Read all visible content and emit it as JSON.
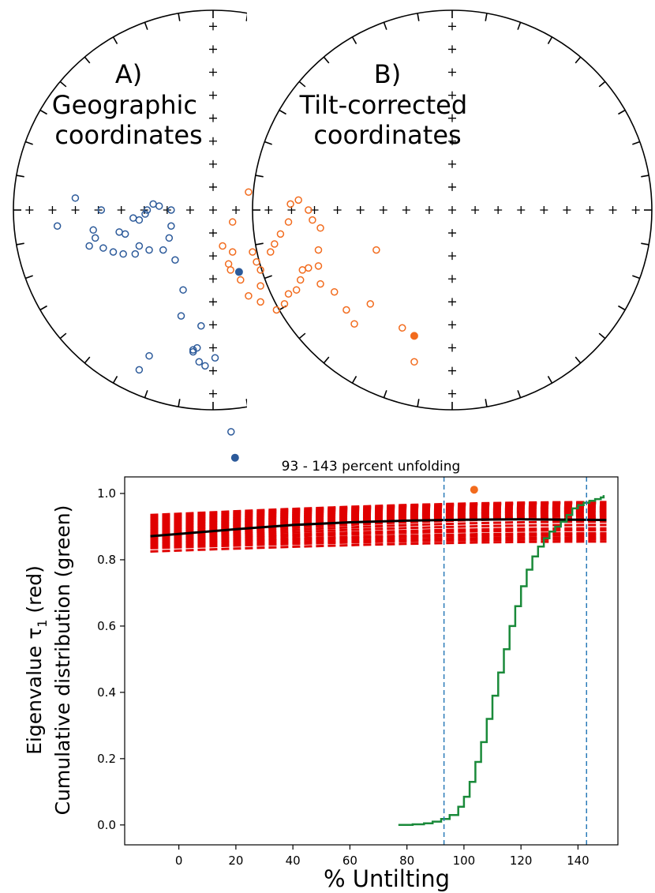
{
  "chart_data": [
    {
      "type": "scatter",
      "panel": "equal-area stereonet",
      "title_letter": "A)",
      "title": "Geographic\ncoordinates",
      "open_marker_color": "#2c5a9a",
      "filled_marker_color": "#2c5a9a",
      "open_points": [
        [
          -0.69,
          0.06
        ],
        [
          -0.78,
          -0.08
        ],
        [
          -0.56,
          0.0
        ],
        [
          -0.6,
          -0.1
        ],
        [
          -0.59,
          -0.14
        ],
        [
          -0.62,
          -0.18
        ],
        [
          -0.47,
          -0.11
        ],
        [
          -0.44,
          -0.12
        ],
        [
          -0.4,
          -0.04
        ],
        [
          -0.37,
          -0.05
        ],
        [
          -0.34,
          -0.02
        ],
        [
          -0.33,
          0.0
        ],
        [
          -0.3,
          0.03
        ],
        [
          -0.27,
          0.02
        ],
        [
          -0.21,
          0.0
        ],
        [
          -0.21,
          -0.08
        ],
        [
          -0.22,
          -0.14
        ],
        [
          -0.25,
          -0.2
        ],
        [
          -0.32,
          -0.2
        ],
        [
          -0.37,
          -0.18
        ],
        [
          -0.39,
          -0.22
        ],
        [
          -0.45,
          -0.22
        ],
        [
          -0.5,
          -0.21
        ],
        [
          -0.55,
          -0.19
        ],
        [
          -0.19,
          -0.25
        ],
        [
          -0.15,
          -0.4
        ],
        [
          -0.16,
          -0.53
        ],
        [
          -0.08,
          -0.69
        ],
        [
          -0.1,
          -0.7
        ],
        [
          -0.1,
          -0.71
        ],
        [
          -0.07,
          -0.76
        ],
        [
          -0.04,
          -0.78
        ],
        [
          0.01,
          -0.74
        ],
        [
          -0.32,
          -0.73
        ],
        [
          -0.37,
          -0.8
        ],
        [
          0.09,
          -1.11
        ],
        [
          -0.06,
          -0.58
        ]
      ],
      "filled_points": [
        [
          0.13,
          -0.31
        ],
        [
          0.11,
          -1.24
        ]
      ]
    },
    {
      "type": "scatter",
      "panel": "equal-area stereonet",
      "title_letter": "B)",
      "title": "Tilt-corrected\ncoordinates",
      "open_marker_color": "#f26b1d",
      "filled_marker_color": "#f26b1d",
      "open_points": [
        [
          -1.02,
          0.09
        ],
        [
          -1.1,
          -0.06
        ],
        [
          -1.15,
          -0.18
        ],
        [
          -1.1,
          -0.21
        ],
        [
          -1.12,
          -0.27
        ],
        [
          -1.11,
          -0.3
        ],
        [
          -1.0,
          -0.21
        ],
        [
          -0.98,
          -0.26
        ],
        [
          -0.96,
          -0.3
        ],
        [
          -0.96,
          -0.38
        ],
        [
          -0.91,
          -0.21
        ],
        [
          -0.89,
          -0.17
        ],
        [
          -0.86,
          -0.12
        ],
        [
          -0.82,
          -0.06
        ],
        [
          -0.81,
          0.03
        ],
        [
          -0.77,
          0.05
        ],
        [
          -0.72,
          0.0
        ],
        [
          -0.7,
          -0.05
        ],
        [
          -0.66,
          -0.09
        ],
        [
          -0.67,
          -0.2
        ],
        [
          -0.67,
          -0.28
        ],
        [
          -0.72,
          -0.29
        ],
        [
          -0.75,
          -0.3
        ],
        [
          -0.76,
          -0.35
        ],
        [
          -0.78,
          -0.4
        ],
        [
          -0.82,
          -0.42
        ],
        [
          -0.84,
          -0.47
        ],
        [
          -0.88,
          -0.5
        ],
        [
          -0.96,
          -0.46
        ],
        [
          -1.02,
          -0.43
        ],
        [
          -1.06,
          -0.35
        ],
        [
          -0.66,
          -0.37
        ],
        [
          -0.59,
          -0.41
        ],
        [
          -0.53,
          -0.5
        ],
        [
          -0.49,
          -0.57
        ],
        [
          -0.41,
          -0.47
        ],
        [
          -0.38,
          -0.2
        ],
        [
          -0.25,
          -0.59
        ],
        [
          -0.19,
          -0.76
        ]
      ],
      "filled_points": [
        [
          -0.19,
          -0.63
        ],
        [
          0.11,
          -1.4
        ]
      ]
    },
    {
      "type": "line",
      "title": "93 - 143 percent unfolding",
      "xlabel": "% Untilting",
      "ylabel_line1": "Eigenvalue τ",
      "ylabel_sub": "1",
      "ylabel_suffix": " (red)",
      "ylabel_line2": "Cumulative distribution (green)",
      "xlim": [
        -19,
        154
      ],
      "ylim": [
        -0.06,
        1.05
      ],
      "xticks": [
        0,
        20,
        40,
        60,
        80,
        100,
        120,
        140
      ],
      "yticks": [
        0.0,
        0.2,
        0.4,
        0.6,
        0.8,
        1.0
      ],
      "ytick_labels": [
        "0.0",
        "0.2",
        "0.4",
        "0.6",
        "0.8",
        "1.0"
      ],
      "bootstrap_tau1_curves": {
        "color": "#e00000",
        "style": "dashed",
        "x_start": -10,
        "x_end": 150,
        "curves": [
          {
            "start": 0.825,
            "end": 0.855
          },
          {
            "start": 0.835,
            "end": 0.862
          },
          {
            "start": 0.84,
            "end": 0.868
          },
          {
            "start": 0.846,
            "end": 0.875
          },
          {
            "start": 0.85,
            "end": 0.88
          },
          {
            "start": 0.855,
            "end": 0.889
          },
          {
            "start": 0.86,
            "end": 0.895
          },
          {
            "start": 0.864,
            "end": 0.905
          },
          {
            "start": 0.868,
            "end": 0.915
          },
          {
            "start": 0.872,
            "end": 0.925
          },
          {
            "start": 0.876,
            "end": 0.932
          },
          {
            "start": 0.88,
            "end": 0.938
          },
          {
            "start": 0.885,
            "end": 0.944
          },
          {
            "start": 0.89,
            "end": 0.948
          },
          {
            "start": 0.895,
            "end": 0.953
          },
          {
            "start": 0.9,
            "end": 0.957
          },
          {
            "start": 0.905,
            "end": 0.96
          },
          {
            "start": 0.91,
            "end": 0.963
          },
          {
            "start": 0.915,
            "end": 0.966
          },
          {
            "start": 0.92,
            "end": 0.968
          },
          {
            "start": 0.925,
            "end": 0.97
          },
          {
            "start": 0.93,
            "end": 0.972
          },
          {
            "start": 0.935,
            "end": 0.974
          }
        ]
      },
      "mean_tau1_curve": {
        "color": "#000000",
        "points": [
          [
            -10,
            0.871
          ],
          [
            0,
            0.878
          ],
          [
            20,
            0.892
          ],
          [
            40,
            0.905
          ],
          [
            60,
            0.913
          ],
          [
            80,
            0.918
          ],
          [
            100,
            0.921
          ],
          [
            120,
            0.922
          ],
          [
            140,
            0.921
          ],
          [
            150,
            0.92
          ]
        ]
      },
      "cumulative_distribution": {
        "color": "#1a8a3a",
        "points": [
          [
            77,
            0.0
          ],
          [
            82,
            0.002
          ],
          [
            86,
            0.005
          ],
          [
            89,
            0.01
          ],
          [
            92,
            0.018
          ],
          [
            95,
            0.03
          ],
          [
            98,
            0.055
          ],
          [
            100,
            0.085
          ],
          [
            102,
            0.13
          ],
          [
            104,
            0.19
          ],
          [
            106,
            0.25
          ],
          [
            108,
            0.32
          ],
          [
            110,
            0.39
          ],
          [
            112,
            0.46
          ],
          [
            114,
            0.53
          ],
          [
            116,
            0.6
          ],
          [
            118,
            0.66
          ],
          [
            120,
            0.72
          ],
          [
            122,
            0.77
          ],
          [
            124,
            0.81
          ],
          [
            126,
            0.84
          ],
          [
            128,
            0.865
          ],
          [
            130,
            0.885
          ],
          [
            132,
            0.9
          ],
          [
            134,
            0.915
          ],
          [
            136,
            0.935
          ],
          [
            138,
            0.955
          ],
          [
            140,
            0.965
          ],
          [
            142,
            0.972
          ],
          [
            144,
            0.978
          ],
          [
            146,
            0.983
          ],
          [
            148,
            0.988
          ],
          [
            149,
            0.995
          ]
        ]
      },
      "bounds": {
        "lower": 93,
        "upper": 143,
        "color": "#2b7bb9"
      }
    }
  ]
}
